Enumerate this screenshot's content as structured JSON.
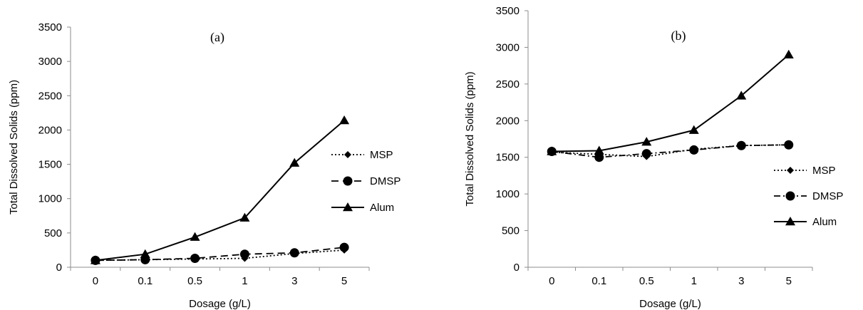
{
  "chart_data": [
    {
      "type": "line",
      "panel_label": "(a)",
      "title": "",
      "xlabel": "Dosage (g/L)",
      "ylabel": "Total Dissolved Solids (ppm)",
      "categories": [
        "0",
        "0.1",
        "0.5",
        "1",
        "3",
        "5"
      ],
      "ylim": [
        0,
        3500
      ],
      "yticks": [
        0,
        500,
        1000,
        1500,
        2000,
        2500,
        3000,
        3500
      ],
      "grid": false,
      "legend_position": "right",
      "series": [
        {
          "name": "MSP",
          "marker": "diamond",
          "dash": "dotted",
          "color": "#000000",
          "values": [
            100,
            110,
            120,
            130,
            200,
            250
          ]
        },
        {
          "name": "DMSP",
          "marker": "circle",
          "dash": "dashed",
          "color": "#000000",
          "values": [
            100,
            110,
            130,
            190,
            210,
            290
          ]
        },
        {
          "name": "Alum",
          "marker": "triangle",
          "dash": "solid",
          "color": "#000000",
          "values": [
            100,
            190,
            440,
            720,
            1520,
            2140
          ]
        }
      ]
    },
    {
      "type": "line",
      "panel_label": "(b)",
      "title": "",
      "xlabel": "Dosage (g/L)",
      "ylabel": "Total Dissolved Solids (ppm)",
      "categories": [
        "0",
        "0.1",
        "0.5",
        "1",
        "3",
        "5"
      ],
      "ylim": [
        0,
        3500
      ],
      "yticks": [
        0,
        500,
        1000,
        1500,
        2000,
        2500,
        3000,
        3500
      ],
      "grid": false,
      "legend_position": "right",
      "series": [
        {
          "name": "MSP",
          "marker": "diamond",
          "dash": "dotted",
          "color": "#000000",
          "values": [
            1570,
            1540,
            1510,
            1610,
            1660,
            1670
          ]
        },
        {
          "name": "DMSP",
          "marker": "circle",
          "dash": "dashdot",
          "color": "#000000",
          "values": [
            1580,
            1500,
            1550,
            1600,
            1660,
            1670
          ]
        },
        {
          "name": "Alum",
          "marker": "triangle",
          "dash": "solid",
          "color": "#000000",
          "values": [
            1580,
            1590,
            1710,
            1870,
            2340,
            2900
          ]
        }
      ]
    }
  ]
}
